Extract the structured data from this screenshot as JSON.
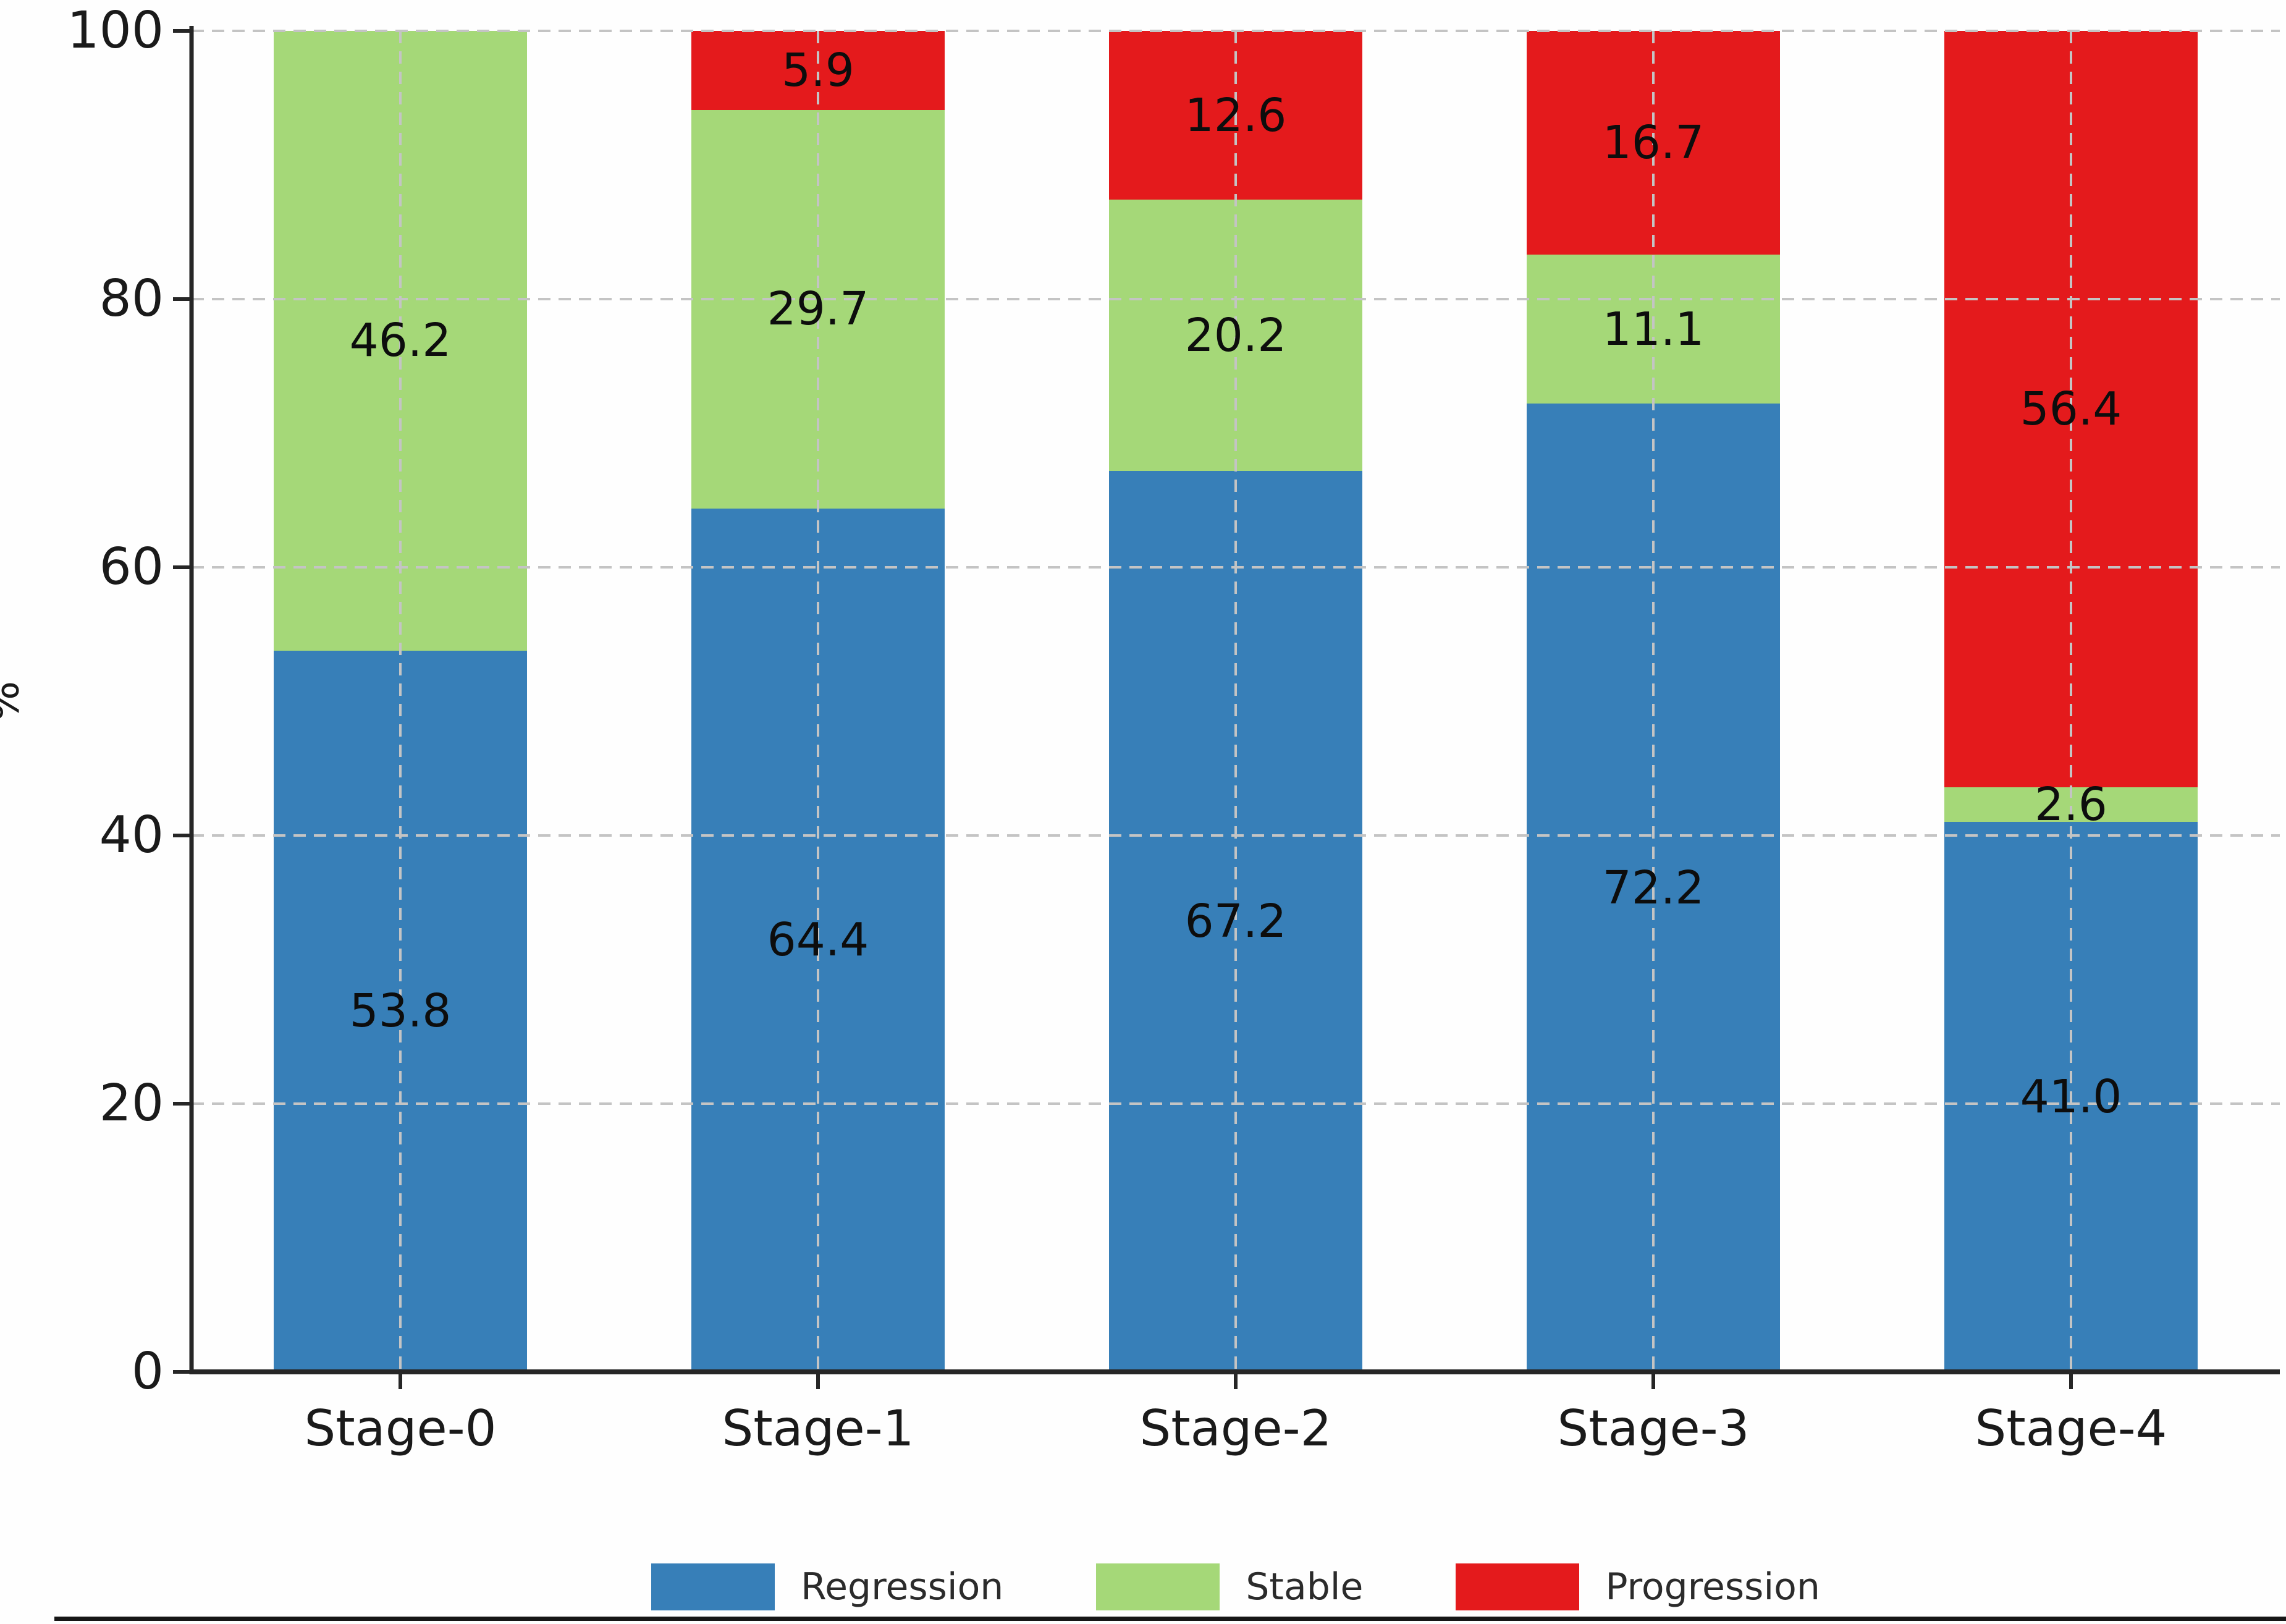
{
  "chart_data": {
    "type": "bar",
    "stacked": true,
    "orientation": "vertical",
    "title": "",
    "xlabel": "",
    "ylabel": "%",
    "ylim": [
      0,
      100
    ],
    "yticks": [
      0,
      20,
      40,
      60,
      80,
      100
    ],
    "grid": true,
    "grid_style": "dashed",
    "legend_position": "bottom-center",
    "categories": [
      "Stage-0",
      "Stage-1",
      "Stage-2",
      "Stage-3",
      "Stage-4"
    ],
    "series": [
      {
        "name": "Regression",
        "color": "#377fb8",
        "values": [
          53.8,
          64.4,
          67.2,
          72.2,
          41.0
        ]
      },
      {
        "name": "Stable",
        "color": "#a5d878",
        "values": [
          46.2,
          29.7,
          20.2,
          11.1,
          2.6
        ]
      },
      {
        "name": "Progression",
        "color": "#e41a1c",
        "values": [
          0.0,
          5.9,
          12.6,
          16.7,
          56.4
        ]
      }
    ],
    "value_label_format": "one-decimal",
    "value_labels_shown": {
      "Stage-0": [
        "53.8",
        "46.2"
      ],
      "Stage-1": [
        "64.4",
        "29.7",
        "5.9"
      ],
      "Stage-2": [
        "67.2",
        "20.2",
        "12.6"
      ],
      "Stage-3": [
        "72.2",
        "11.1",
        "16.7"
      ],
      "Stage-4": [
        "41.0",
        "2.6",
        "56.4"
      ]
    },
    "colors": {
      "spine": "#262626",
      "gridline": "#c4c4c4",
      "tick_label": "#1a1a1a",
      "value_label": "#0d0d0d",
      "legend_text": "#2b2b2b",
      "background": "#fefefe"
    }
  }
}
